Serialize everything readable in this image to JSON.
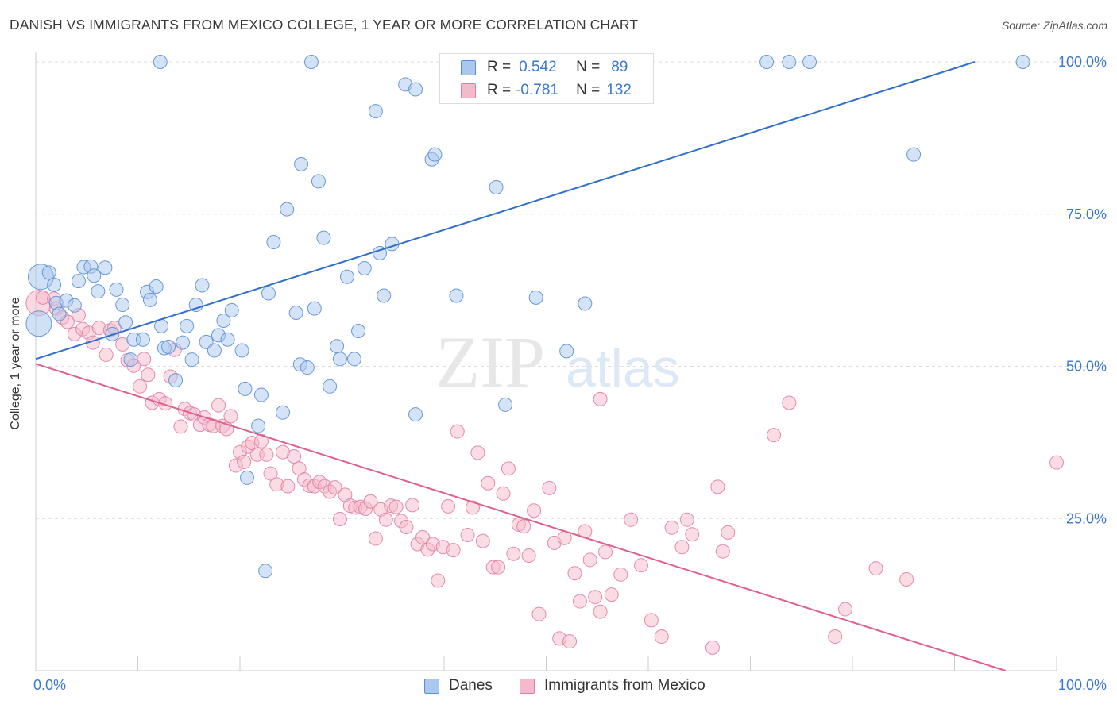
{
  "title": "DANISH VS IMMIGRANTS FROM MEXICO COLLEGE, 1 YEAR OR MORE CORRELATION CHART",
  "source": "Source: ZipAtlas.com",
  "watermark": {
    "zip": "ZIP",
    "atlas": "atlas"
  },
  "legend_top": {
    "rows": [
      {
        "r_label": "R =",
        "r_value": "0.542",
        "n_label": "N =",
        "n_value": "89"
      },
      {
        "r_label": "R =",
        "r_value": "-0.781",
        "n_label": "N =",
        "n_value": "132"
      }
    ]
  },
  "legend_bottom": {
    "danes": "Danes",
    "mexico": "Immigrants from Mexico"
  },
  "colors": {
    "danes_fill": "#aac8ee",
    "danes_stroke": "#5b8fd4",
    "danes_line": "#3070cc",
    "mexico_fill": "#f5b9cc",
    "mexico_stroke": "#e07fa2",
    "mexico_line": "#e0608c",
    "tick_label": "#3a78d0",
    "grid": "#dddddd"
  },
  "chart_data": {
    "type": "scatter",
    "title": "DANISH VS IMMIGRANTS FROM MEXICO COLLEGE, 1 YEAR OR MORE CORRELATION CHART",
    "xlabel": "",
    "ylabel": "College, 1 year or more",
    "xlim": [
      0,
      100
    ],
    "ylim": [
      0,
      100
    ],
    "x_tick_labels": [
      "0.0%",
      "100.0%"
    ],
    "y_tick_labels": [
      "25.0%",
      "50.0%",
      "75.0%",
      "100.0%"
    ],
    "y_ticks": [
      25,
      50,
      75,
      100
    ],
    "grid": true,
    "legend_position": "top-center",
    "series": [
      {
        "name": "Danes",
        "R": 0.542,
        "N": 89,
        "trend": {
          "x": [
            0,
            92
          ],
          "y": [
            51.2,
            100
          ]
        },
        "points": [
          [
            0.3,
            57.0
          ],
          [
            0.5,
            64.7
          ],
          [
            1.3,
            65.4
          ],
          [
            1.8,
            63.4
          ],
          [
            2.0,
            60.4
          ],
          [
            2.3,
            58.6
          ],
          [
            3.0,
            60.8
          ],
          [
            3.8,
            60.0
          ],
          [
            4.2,
            64.0
          ],
          [
            4.7,
            66.3
          ],
          [
            5.4,
            66.4
          ],
          [
            5.7,
            64.9
          ],
          [
            6.1,
            62.3
          ],
          [
            6.8,
            66.2
          ],
          [
            7.5,
            55.3
          ],
          [
            7.9,
            62.6
          ],
          [
            8.5,
            60.1
          ],
          [
            8.8,
            57.2
          ],
          [
            9.3,
            51.1
          ],
          [
            9.6,
            54.4
          ],
          [
            10.5,
            54.4
          ],
          [
            10.9,
            62.2
          ],
          [
            11.2,
            60.9
          ],
          [
            11.8,
            63.1
          ],
          [
            12.3,
            56.6
          ],
          [
            12.6,
            53.0
          ],
          [
            13.0,
            53.2
          ],
          [
            13.7,
            47.7
          ],
          [
            14.4,
            53.9
          ],
          [
            14.8,
            56.6
          ],
          [
            15.3,
            51.1
          ],
          [
            15.7,
            60.1
          ],
          [
            16.3,
            63.3
          ],
          [
            16.7,
            54.0
          ],
          [
            17.5,
            52.6
          ],
          [
            17.9,
            55.1
          ],
          [
            18.4,
            57.5
          ],
          [
            18.8,
            54.4
          ],
          [
            19.2,
            59.2
          ],
          [
            20.2,
            52.6
          ],
          [
            20.5,
            46.3
          ],
          [
            20.7,
            31.7
          ],
          [
            21.8,
            40.2
          ],
          [
            22.1,
            45.3
          ],
          [
            22.5,
            16.4
          ],
          [
            22.8,
            62.0
          ],
          [
            23.3,
            70.4
          ],
          [
            24.2,
            42.4
          ],
          [
            24.6,
            75.8
          ],
          [
            25.5,
            58.8
          ],
          [
            25.9,
            50.3
          ],
          [
            26.0,
            83.2
          ],
          [
            26.6,
            49.8
          ],
          [
            27.3,
            59.5
          ],
          [
            27.7,
            80.4
          ],
          [
            28.2,
            71.1
          ],
          [
            28.8,
            46.7
          ],
          [
            29.5,
            53.3
          ],
          [
            29.8,
            51.2
          ],
          [
            30.5,
            64.7
          ],
          [
            31.2,
            51.2
          ],
          [
            31.6,
            55.8
          ],
          [
            32.2,
            66.1
          ],
          [
            33.3,
            91.9
          ],
          [
            33.7,
            68.6
          ],
          [
            34.1,
            61.6
          ],
          [
            34.9,
            70.1
          ],
          [
            36.2,
            96.3
          ],
          [
            37.2,
            95.5
          ],
          [
            37.2,
            42.1
          ],
          [
            38.8,
            84.0
          ],
          [
            39.1,
            84.8
          ],
          [
            41.2,
            61.6
          ],
          [
            45.1,
            79.4
          ],
          [
            46.0,
            43.7
          ],
          [
            49.0,
            61.3
          ],
          [
            52.0,
            52.5
          ],
          [
            53.8,
            60.3
          ],
          [
            71.6,
            100.0
          ],
          [
            73.8,
            100.0
          ],
          [
            75.8,
            100.0
          ],
          [
            86.0,
            84.8
          ],
          [
            96.7,
            100.0
          ],
          [
            27.0,
            100.0
          ],
          [
            43.4,
            100.0
          ],
          [
            42.0,
            100.0
          ],
          [
            12.2,
            100.0
          ],
          [
            49.9,
            100.0
          ],
          [
            54.0,
            100.0
          ]
        ]
      },
      {
        "name": "Immigrants from Mexico",
        "R": -0.781,
        "N": 132,
        "trend": {
          "x": [
            0,
            95
          ],
          "y": [
            50.4,
            0
          ]
        },
        "points": [
          [
            0.3,
            60.4
          ],
          [
            0.7,
            61.3
          ],
          [
            1.8,
            61.1
          ],
          [
            2.0,
            59.5
          ],
          [
            2.6,
            58.0
          ],
          [
            3.1,
            57.3
          ],
          [
            3.8,
            55.3
          ],
          [
            4.2,
            58.4
          ],
          [
            4.6,
            56.1
          ],
          [
            5.2,
            55.5
          ],
          [
            5.6,
            53.9
          ],
          [
            6.2,
            56.3
          ],
          [
            6.9,
            51.9
          ],
          [
            7.3,
            55.9
          ],
          [
            7.7,
            56.3
          ],
          [
            8.5,
            53.6
          ],
          [
            9.0,
            51.0
          ],
          [
            9.6,
            50.1
          ],
          [
            10.2,
            46.7
          ],
          [
            10.6,
            51.2
          ],
          [
            11.0,
            48.6
          ],
          [
            11.4,
            44.0
          ],
          [
            12.1,
            44.6
          ],
          [
            12.7,
            43.9
          ],
          [
            13.2,
            48.3
          ],
          [
            13.6,
            52.7
          ],
          [
            14.2,
            40.1
          ],
          [
            14.6,
            43.0
          ],
          [
            15.1,
            42.3
          ],
          [
            15.5,
            42.1
          ],
          [
            16.1,
            40.4
          ],
          [
            16.5,
            41.6
          ],
          [
            17.0,
            40.4
          ],
          [
            17.4,
            40.2
          ],
          [
            17.9,
            43.6
          ],
          [
            18.3,
            40.2
          ],
          [
            18.7,
            39.7
          ],
          [
            19.1,
            41.8
          ],
          [
            19.6,
            33.7
          ],
          [
            20.0,
            35.9
          ],
          [
            20.4,
            34.3
          ],
          [
            20.8,
            36.8
          ],
          [
            21.2,
            37.4
          ],
          [
            21.7,
            35.5
          ],
          [
            22.1,
            37.7
          ],
          [
            22.6,
            35.5
          ],
          [
            23.0,
            32.4
          ],
          [
            23.6,
            30.6
          ],
          [
            24.2,
            35.9
          ],
          [
            24.7,
            30.3
          ],
          [
            25.3,
            35.2
          ],
          [
            25.8,
            33.2
          ],
          [
            26.3,
            31.4
          ],
          [
            26.8,
            30.4
          ],
          [
            27.3,
            30.3
          ],
          [
            27.8,
            31.0
          ],
          [
            28.3,
            30.3
          ],
          [
            28.8,
            29.4
          ],
          [
            29.3,
            30.1
          ],
          [
            29.8,
            24.9
          ],
          [
            30.3,
            28.9
          ],
          [
            30.8,
            27.1
          ],
          [
            31.3,
            26.8
          ],
          [
            31.8,
            26.9
          ],
          [
            32.3,
            26.6
          ],
          [
            32.8,
            27.8
          ],
          [
            33.3,
            21.7
          ],
          [
            33.8,
            26.5
          ],
          [
            34.3,
            24.8
          ],
          [
            34.8,
            27.1
          ],
          [
            35.3,
            26.9
          ],
          [
            35.8,
            24.6
          ],
          [
            36.3,
            23.6
          ],
          [
            36.9,
            27.2
          ],
          [
            37.4,
            20.8
          ],
          [
            37.9,
            21.9
          ],
          [
            38.4,
            19.9
          ],
          [
            38.9,
            20.8
          ],
          [
            39.4,
            14.8
          ],
          [
            39.9,
            20.3
          ],
          [
            40.4,
            27.0
          ],
          [
            40.9,
            19.8
          ],
          [
            41.3,
            39.3
          ],
          [
            42.3,
            22.3
          ],
          [
            42.8,
            26.8
          ],
          [
            43.3,
            35.8
          ],
          [
            43.8,
            21.3
          ],
          [
            44.3,
            30.8
          ],
          [
            44.8,
            17.0
          ],
          [
            45.3,
            17.0
          ],
          [
            45.8,
            29.1
          ],
          [
            46.3,
            33.2
          ],
          [
            46.8,
            19.2
          ],
          [
            47.3,
            24.0
          ],
          [
            47.8,
            23.7
          ],
          [
            48.3,
            18.9
          ],
          [
            48.8,
            26.3
          ],
          [
            49.3,
            9.3
          ],
          [
            50.3,
            30.0
          ],
          [
            50.8,
            21.0
          ],
          [
            51.3,
            5.3
          ],
          [
            51.8,
            21.8
          ],
          [
            52.3,
            4.8
          ],
          [
            52.8,
            16.0
          ],
          [
            53.3,
            11.4
          ],
          [
            53.8,
            22.9
          ],
          [
            54.3,
            18.2
          ],
          [
            54.8,
            12.1
          ],
          [
            55.3,
            9.7
          ],
          [
            55.8,
            19.5
          ],
          [
            56.4,
            12.5
          ],
          [
            57.3,
            15.8
          ],
          [
            58.3,
            24.8
          ],
          [
            59.3,
            17.3
          ],
          [
            60.3,
            8.3
          ],
          [
            61.3,
            5.6
          ],
          [
            62.3,
            23.5
          ],
          [
            63.3,
            20.3
          ],
          [
            63.8,
            24.8
          ],
          [
            64.3,
            22.4
          ],
          [
            66.3,
            3.8
          ],
          [
            66.8,
            30.2
          ],
          [
            67.3,
            19.6
          ],
          [
            67.8,
            22.7
          ],
          [
            72.3,
            38.7
          ],
          [
            73.8,
            44.0
          ],
          [
            78.3,
            5.6
          ],
          [
            79.3,
            10.1
          ],
          [
            82.3,
            16.8
          ],
          [
            85.3,
            15.0
          ],
          [
            100.0,
            34.2
          ],
          [
            55.3,
            44.6
          ]
        ]
      }
    ]
  }
}
